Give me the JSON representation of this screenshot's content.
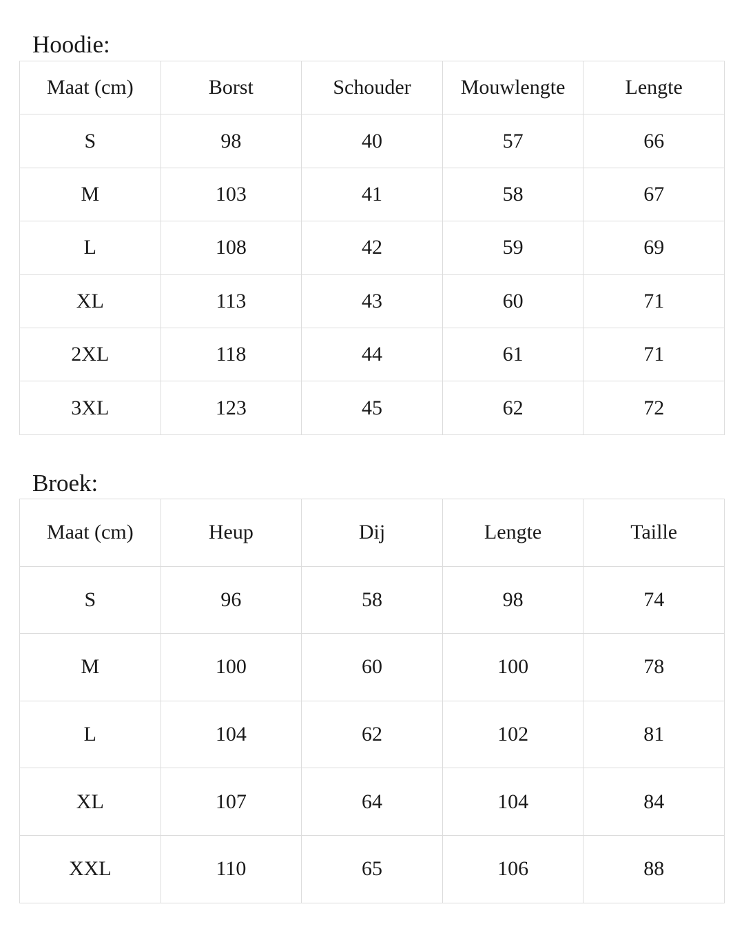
{
  "hoodie": {
    "title": "Hoodie:",
    "headers": [
      "Maat (cm)",
      "Borst",
      "Schouder",
      "Mouwlengte",
      "Lengte"
    ],
    "rows": [
      [
        "S",
        "98",
        "40",
        "57",
        "66"
      ],
      [
        "M",
        "103",
        "41",
        "58",
        "67"
      ],
      [
        "L",
        "108",
        "42",
        "59",
        "69"
      ],
      [
        "XL",
        "113",
        "43",
        "60",
        "71"
      ],
      [
        "2XL",
        "118",
        "44",
        "61",
        "71"
      ],
      [
        "3XL",
        "123",
        "45",
        "62",
        "72"
      ]
    ]
  },
  "broek": {
    "title": "Broek:",
    "headers": [
      "Maat (cm)",
      "Heup",
      "Dij",
      "Lengte",
      "Taille"
    ],
    "rows": [
      [
        "S",
        "96",
        "58",
        "98",
        "74"
      ],
      [
        "M",
        "100",
        "60",
        "100",
        "78"
      ],
      [
        "L",
        "104",
        "62",
        "102",
        "81"
      ],
      [
        "XL",
        "107",
        "64",
        "104",
        "84"
      ],
      [
        "XXL",
        "110",
        "65",
        "106",
        "88"
      ]
    ]
  }
}
